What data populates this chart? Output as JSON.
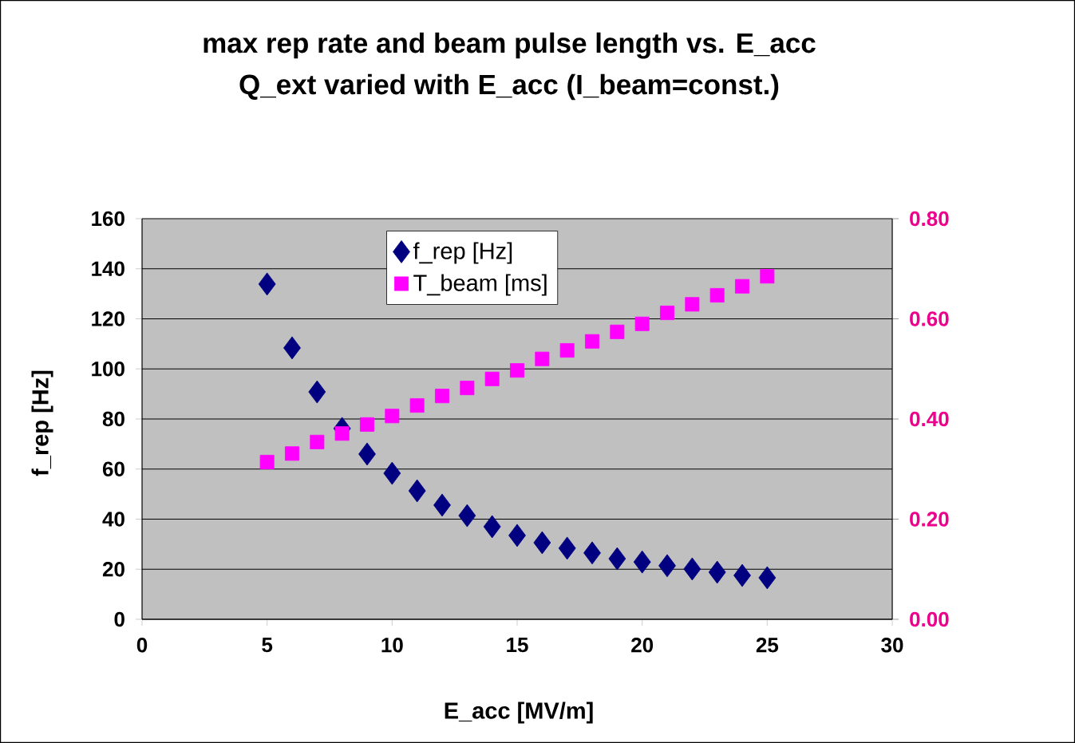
{
  "chart_data": {
    "type": "scatter",
    "title": "max rep rate and beam pulse length vs. E_acc",
    "subtitle": "Q_ext varied with E_acc (I_beam=const.)",
    "xlabel": "E_acc [MV/m]",
    "ylabel": "f_rep [Hz]",
    "x": [
      5,
      6,
      7,
      8,
      9,
      10,
      11,
      12,
      13,
      14,
      15,
      16,
      17,
      18,
      19,
      20,
      21,
      22,
      23,
      24,
      25
    ],
    "series": [
      {
        "name": "f_rep [Hz]",
        "color": "#000080",
        "marker": "diamond",
        "values": [
          133.9,
          108.4,
          90.8,
          76.2,
          66.0,
          58.3,
          51.3,
          45.6,
          41.4,
          37.0,
          33.5,
          30.6,
          28.4,
          26.5,
          24.2,
          22.9,
          21.4,
          20.1,
          18.8,
          17.5,
          16.6
        ]
      },
      {
        "name": "T_beam [ms]",
        "color": "#ff00ff",
        "marker": "square",
        "axis": "y2",
        "values": [
          0.314,
          0.331,
          0.354,
          0.371,
          0.389,
          0.406,
          0.427,
          0.446,
          0.462,
          0.48,
          0.497,
          0.52,
          0.537,
          0.555,
          0.574,
          0.59,
          0.612,
          0.629,
          0.647,
          0.665,
          0.685
        ]
      }
    ],
    "xlim": [
      0,
      30
    ],
    "xticks": [
      0,
      5,
      10,
      15,
      20,
      25,
      30
    ],
    "ylim": [
      0,
      160
    ],
    "yticks": [
      0,
      20,
      40,
      60,
      80,
      100,
      120,
      140,
      160
    ],
    "y2lim": [
      0,
      0.8
    ],
    "y2ticks": [
      {
        "value": 0,
        "label": "0.00"
      },
      {
        "value": 0.2,
        "label": "0.20"
      },
      {
        "value": 0.4,
        "label": "0.40"
      },
      {
        "value": 0.6,
        "label": "0.60"
      },
      {
        "value": 0.8,
        "label": "0.80"
      }
    ],
    "grid": "y",
    "legend": "top"
  }
}
